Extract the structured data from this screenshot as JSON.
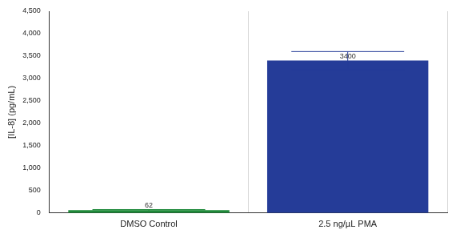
{
  "chart_data": {
    "type": "bar",
    "y_label": "[IL-8] (pg/mL)",
    "categories": [
      "DMSO Control",
      "2.5 ng/µL PMA"
    ],
    "values": [
      62,
      3400
    ],
    "errors": [
      15,
      200
    ],
    "colors": [
      "#1f8a3a",
      "#253c98"
    ],
    "ylim": [
      0,
      4500
    ],
    "yticks": [
      0,
      500,
      1000,
      1500,
      2000,
      2500,
      3000,
      3500,
      4000,
      4500
    ],
    "grid": true,
    "data_labels": true
  }
}
